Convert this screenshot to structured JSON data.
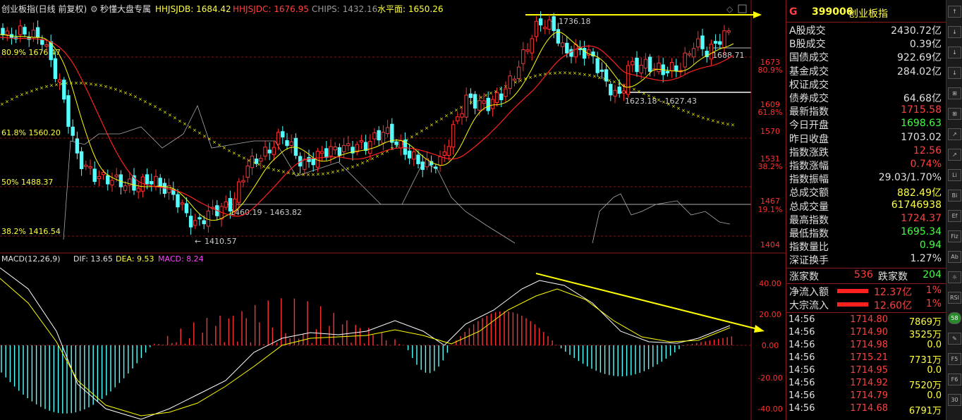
{
  "header": {
    "title": "创业板指(日线 前复权)",
    "indicator_name": "秒懂大盘专属",
    "hhjsjdb": "HHJSJDB: 1684.42",
    "hhjsjdc": "HHJSJDC: 1676.95",
    "chips": "CHIPS: 1432.16",
    "level": "水平面: 1650.26"
  },
  "price_axis": [
    "1673",
    "80.9%",
    "1609",
    "61.8%",
    "1570",
    "1531",
    "38.2%",
    "1467",
    "19.1%",
    "1404"
  ],
  "price_annotations": {
    "high": "1736.18",
    "right_level": "1688.71",
    "range_right": "1623.18 - 1627.43",
    "range_left": "1460.19 - 1463.82",
    "low": "1410.57",
    "fib_809": "80.9% 1676.47",
    "fib_618": "61.8% 1560.20",
    "fib_50": "50% 1488.37",
    "fib_382": "38.2% 1416.54"
  },
  "macd": {
    "label": "MACD(12,26,9)",
    "dif": "DIF: 13.65",
    "dea": "DEA: 9.53",
    "macd": "MACD: 8.24",
    "axis": [
      "40.00",
      "20.00",
      "0.00",
      "-20.00",
      "-40.00"
    ]
  },
  "colors": {
    "up": "#ff3232",
    "down": "#54ffff",
    "ma_fast": "#ffff00",
    "ma_slow": "#ff2020",
    "accent": "#ffff00"
  },
  "panel": {
    "code_prefix": "G",
    "code": "399006",
    "name": "创业板指",
    "rows": [
      {
        "label": "A股成交",
        "value": "2430.72亿",
        "color": "#e0e0e0"
      },
      {
        "label": "B股成交",
        "value": "0.39亿",
        "color": "#e0e0e0"
      },
      {
        "label": "国债成交",
        "value": "922.69亿",
        "color": "#e0e0e0"
      },
      {
        "label": "基金成交",
        "value": "284.02亿",
        "color": "#e0e0e0"
      },
      {
        "label": "权证成交",
        "value": "",
        "color": "#e0e0e0"
      },
      {
        "label": "债券成交",
        "value": "64.68亿",
        "color": "#e0e0e0"
      },
      {
        "label": "最新指数",
        "value": "1715.58",
        "color": "#ff4040"
      },
      {
        "label": "今日开盘",
        "value": "1698.63",
        "color": "#40ff40"
      },
      {
        "label": "昨日收盘",
        "value": "1703.02",
        "color": "#e0e0e0"
      },
      {
        "label": "指数涨跌",
        "value": "12.56",
        "color": "#ff4040"
      },
      {
        "label": "指数涨幅",
        "value": "0.74%",
        "color": "#ff4040"
      },
      {
        "label": "指数振幅",
        "value": "29.03/1.70%",
        "color": "#e0e0e0"
      },
      {
        "label": "总成交额",
        "value": "882.49亿",
        "color": "#ffff40"
      },
      {
        "label": "总成交量",
        "value": "61746938",
        "color": "#ffff40"
      },
      {
        "label": "最高指数",
        "value": "1724.37",
        "color": "#ff4040"
      },
      {
        "label": "最低指数",
        "value": "1695.34",
        "color": "#40ff40"
      },
      {
        "label": "指数量比",
        "value": "0.94",
        "color": "#40ff40"
      },
      {
        "label": "深证换手",
        "value": "1.27%",
        "color": "#e0e0e0"
      }
    ],
    "breadth": {
      "up_label": "涨家数",
      "up_value": "536",
      "down_label": "跌家数",
      "down_value": "204"
    },
    "flows": [
      {
        "label": "净流入额",
        "value": "12.37亿",
        "pct": "1%"
      },
      {
        "label": "大宗流入",
        "value": "12.60亿",
        "pct": "1%"
      }
    ],
    "ticks": [
      {
        "time": "14:56",
        "price": "1714.80",
        "vol": "7869万"
      },
      {
        "time": "14:56",
        "price": "1714.90",
        "vol": "3525万"
      },
      {
        "time": "14:56",
        "price": "1714.98",
        "vol": "0.0"
      },
      {
        "time": "14:56",
        "price": "1715.21",
        "vol": "7731万"
      },
      {
        "time": "14:56",
        "price": "1714.95",
        "vol": "0.0"
      },
      {
        "time": "14:56",
        "price": "1714.92",
        "vol": "7520万"
      },
      {
        "time": "14:56",
        "price": "1714.79",
        "vol": "0.0"
      },
      {
        "time": "14:56",
        "price": "1714.68",
        "vol": "6791万"
      }
    ]
  },
  "toolbar": {
    "buttons": [
      "↑",
      "↓",
      "↓",
      "↓",
      "⊞",
      "⊞",
      "↗",
      "↗",
      "Li",
      "Bi",
      "Ef",
      "Fiz",
      "Ab",
      "☼",
      "RSI",
      "58",
      "✎",
      "F5",
      "F6",
      "30"
    ]
  }
}
